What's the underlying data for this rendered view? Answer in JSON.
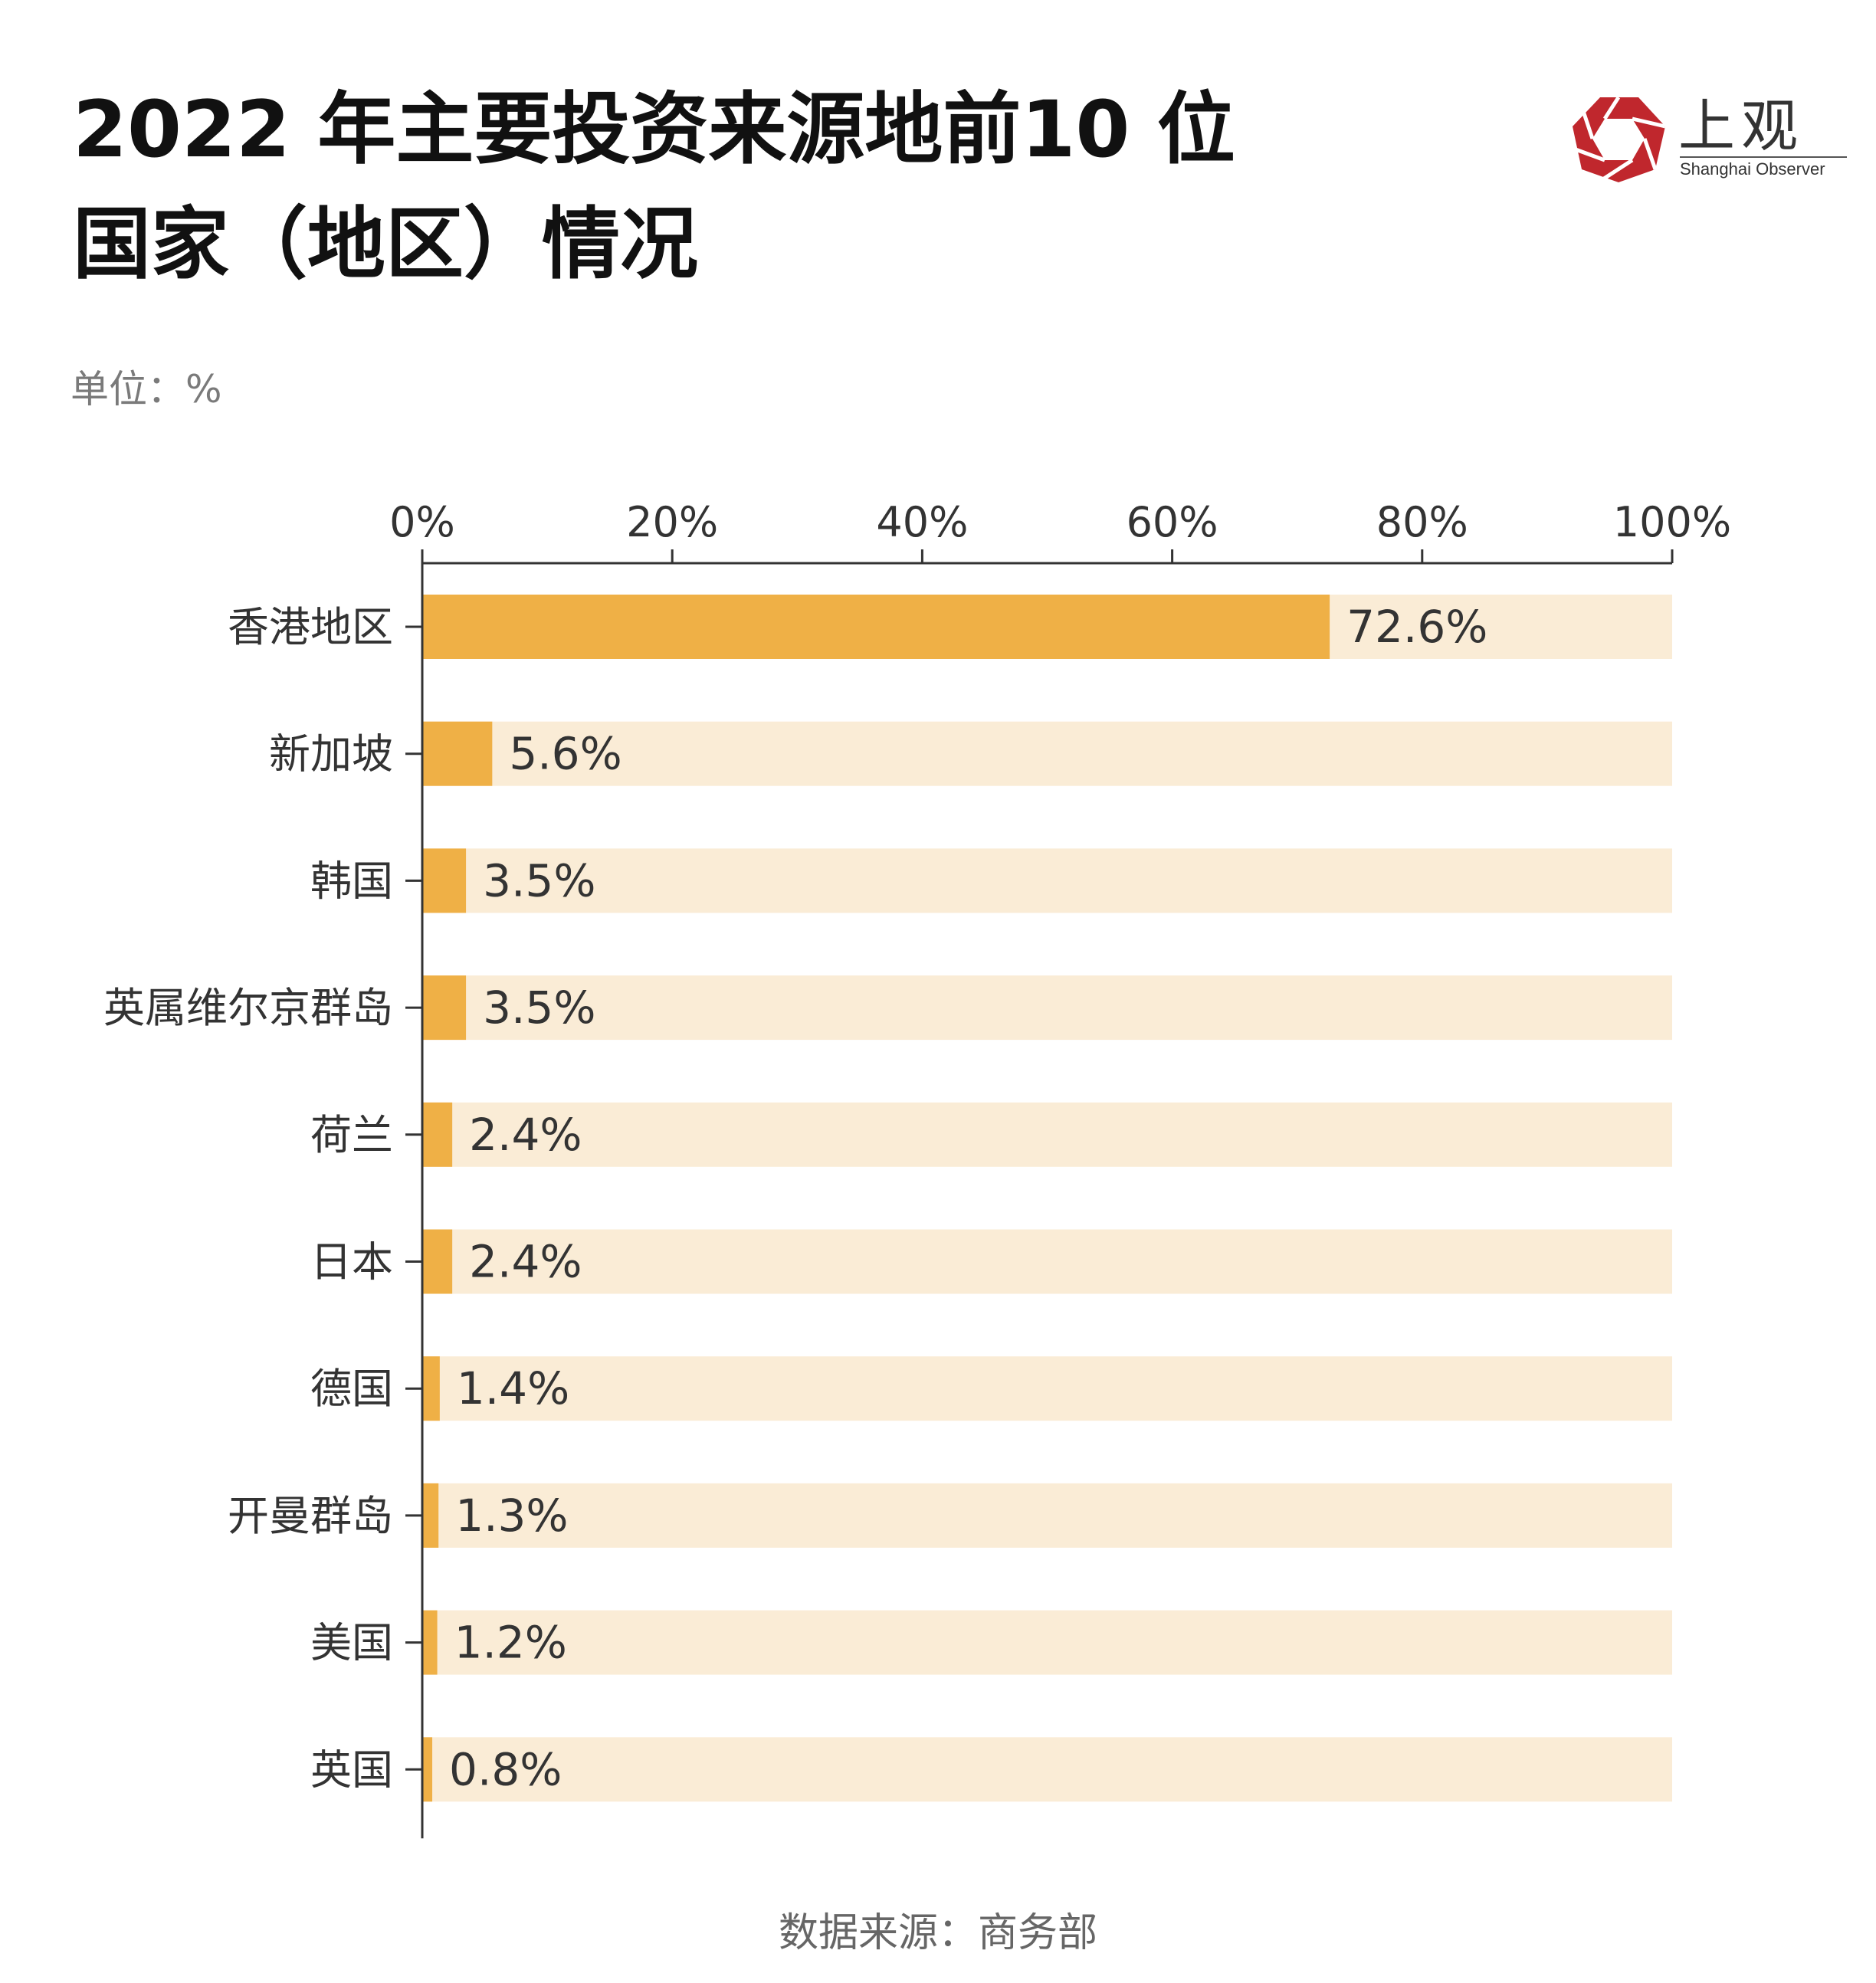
{
  "title": {
    "line1": "2022 年主要投资来源地前10 位",
    "line2": "国家（地区）情况"
  },
  "unit_label": "单位：%",
  "source_label": "数据来源：商务部",
  "logo": {
    "cn": "上观",
    "en": "Shanghai Observer"
  },
  "colors": {
    "bar": "#EFB046",
    "track": "#FAECD6",
    "axis": "#333333",
    "logo_red": "#C0272D"
  },
  "chart_data": {
    "type": "bar",
    "orientation": "horizontal",
    "categories": [
      "香港地区",
      "新加坡",
      "韩国",
      "英属维尔京群岛",
      "荷兰",
      "日本",
      "德国",
      "开曼群岛",
      "美国",
      "英国"
    ],
    "values": [
      72.6,
      5.6,
      3.5,
      3.5,
      2.4,
      2.4,
      1.4,
      1.3,
      1.2,
      0.8
    ],
    "value_labels": [
      "72.6%",
      "5.6%",
      "3.5%",
      "3.5%",
      "2.4%",
      "2.4%",
      "1.4%",
      "1.3%",
      "1.2%",
      "0.8%"
    ],
    "x_ticks": [
      0,
      20,
      40,
      60,
      80,
      100
    ],
    "x_tick_labels": [
      "0%",
      "20%",
      "40%",
      "60%",
      "80%",
      "100%"
    ],
    "xlim": [
      0,
      100
    ],
    "axis_position": "top",
    "grid": false,
    "legend": "none"
  }
}
